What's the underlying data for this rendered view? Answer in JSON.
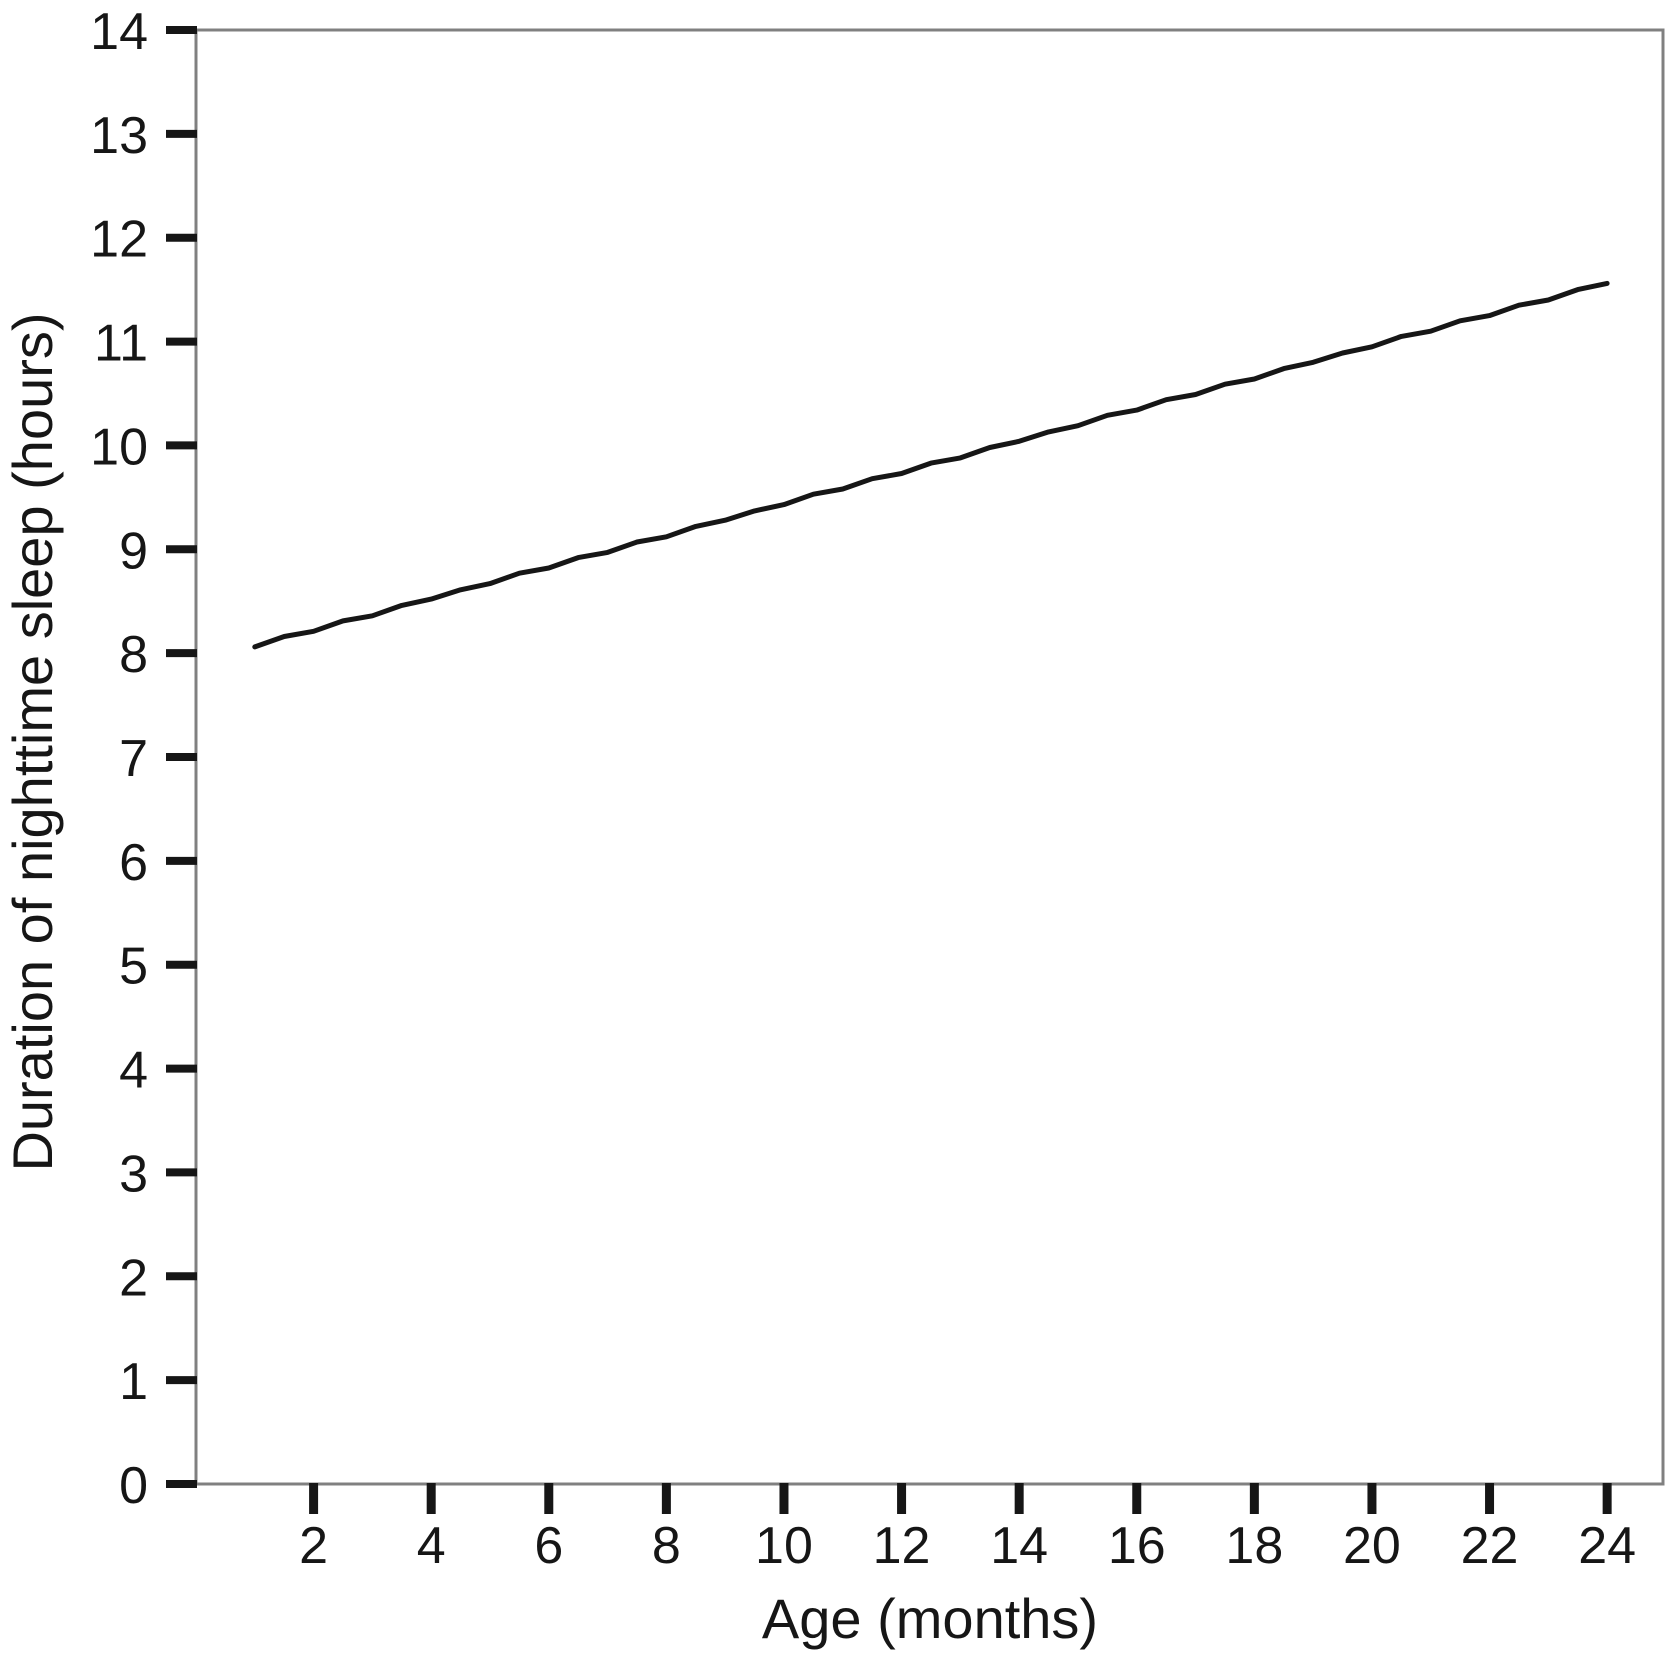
{
  "chart_data": {
    "type": "line",
    "title": "",
    "xlabel": "Age (months)",
    "ylabel": "Duration of nighttime sleep (hours)",
    "x": [
      1,
      1.5,
      2,
      2.5,
      3,
      3.5,
      4,
      4.5,
      5,
      5.5,
      6,
      6.5,
      7,
      7.5,
      8,
      8.5,
      9,
      9.5,
      10,
      10.5,
      11,
      11.5,
      12,
      12.5,
      13,
      13.5,
      14,
      14.5,
      15,
      15.5,
      16,
      16.5,
      17,
      17.5,
      18,
      18.5,
      19,
      19.5,
      20,
      20.5,
      21,
      21.5,
      22,
      22.5,
      23,
      23.5,
      24
    ],
    "series": [
      {
        "name": "Duration of nighttime sleep",
        "values": [
          8.06,
          8.16,
          8.21,
          8.31,
          8.36,
          8.46,
          8.52,
          8.61,
          8.67,
          8.77,
          8.82,
          8.92,
          8.97,
          9.07,
          9.12,
          9.22,
          9.28,
          9.37,
          9.43,
          9.53,
          9.58,
          9.68,
          9.73,
          9.83,
          9.88,
          9.98,
          10.04,
          10.13,
          10.19,
          10.29,
          10.34,
          10.44,
          10.49,
          10.59,
          10.64,
          10.74,
          10.8,
          10.89,
          10.95,
          11.05,
          11.1,
          11.2,
          11.25,
          11.35,
          11.4,
          11.5,
          11.56
        ]
      }
    ],
    "xlim": [
      0,
      24.95
    ],
    "ylim": [
      0,
      14
    ],
    "x_ticks": [
      2,
      4,
      6,
      8,
      10,
      12,
      14,
      16,
      18,
      20,
      22,
      24
    ],
    "y_ticks": [
      0,
      1,
      2,
      3,
      4,
      5,
      6,
      7,
      8,
      9,
      10,
      11,
      12,
      13,
      14
    ],
    "grid": false,
    "legend": false,
    "colors": {
      "line": "#161616",
      "frame": "#808080",
      "tick": "#161616",
      "text": "#161616"
    }
  }
}
